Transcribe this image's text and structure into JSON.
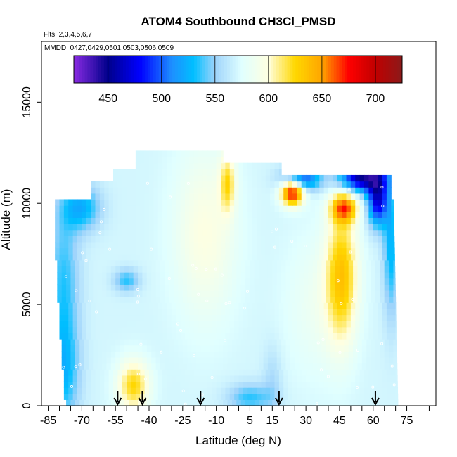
{
  "chart_data": {
    "type": "heatmap",
    "title": "ATOM4 Southbound CH3Cl_PMSD",
    "subtitle": "Flts: 2,3,4,5,6,7",
    "annotation": "MMDD: 0427,0429,0501,0503,0506,0509",
    "xlabel": "Latitude (deg N)",
    "ylabel": "Altitude (m)",
    "xlim": [
      -88,
      88
    ],
    "ylim": [
      0,
      18000
    ],
    "x_ticks": [
      -85,
      -70,
      -55,
      -40,
      -25,
      -10,
      5,
      15,
      30,
      45,
      60,
      75
    ],
    "y_ticks": [
      0,
      5000,
      10000,
      15000
    ],
    "colorbar": {
      "range": [
        418,
        725
      ],
      "ticks": [
        450,
        500,
        550,
        600,
        650,
        700
      ],
      "stops": [
        {
          "v": 418,
          "c": "#8a2be2"
        },
        {
          "v": 450,
          "c": "#00008b"
        },
        {
          "v": 480,
          "c": "#0000ff"
        },
        {
          "v": 510,
          "c": "#1e90ff"
        },
        {
          "v": 530,
          "c": "#00bfff"
        },
        {
          "v": 550,
          "c": "#9ed3fb"
        },
        {
          "v": 575,
          "c": "#e0ffff"
        },
        {
          "v": 600,
          "c": "#ffffe0"
        },
        {
          "v": 625,
          "c": "#ffd700"
        },
        {
          "v": 650,
          "c": "#ffa500"
        },
        {
          "v": 675,
          "c": "#ff0000"
        },
        {
          "v": 700,
          "c": "#c00000"
        },
        {
          "v": 725,
          "c": "#8b1a1a"
        }
      ]
    },
    "arrows_lat": [
      -54,
      -43,
      -17,
      18,
      61
    ],
    "background_value": 570,
    "field_features": [
      {
        "lat": -70,
        "alt": 9800,
        "value": 525,
        "sx": 6,
        "sy": 800
      },
      {
        "lat": -78,
        "alt": 6000,
        "value": 535,
        "sx": 5,
        "sy": 3000
      },
      {
        "lat": -78,
        "alt": 1500,
        "value": 535,
        "sx": 5,
        "sy": 1800
      },
      {
        "lat": -50,
        "alt": 6200,
        "value": 535,
        "sx": 4,
        "sy": 400
      },
      {
        "lat": -47,
        "alt": 1000,
        "value": 625,
        "sx": 5,
        "sy": 900
      },
      {
        "lat": -15,
        "alt": 8500,
        "value": 598,
        "sx": 10,
        "sy": 3000
      },
      {
        "lat": -5,
        "alt": 11000,
        "value": 615,
        "sx": 2.5,
        "sy": 1000
      },
      {
        "lat": 5,
        "alt": 400,
        "value": 535,
        "sx": 7,
        "sy": 500
      },
      {
        "lat": 15,
        "alt": 1300,
        "value": 555,
        "sx": 3,
        "sy": 1200
      },
      {
        "lat": 24,
        "alt": 10600,
        "value": 690,
        "sx": 3.5,
        "sy": 450
      },
      {
        "lat": 28,
        "alt": 11200,
        "value": 490,
        "sx": 6,
        "sy": 400
      },
      {
        "lat": 55,
        "alt": 11300,
        "value": 450,
        "sx": 7,
        "sy": 500
      },
      {
        "lat": 62,
        "alt": 10200,
        "value": 470,
        "sx": 3,
        "sy": 900
      },
      {
        "lat": 68,
        "alt": 8000,
        "value": 525,
        "sx": 2.5,
        "sy": 2500
      },
      {
        "lat": 47,
        "alt": 9800,
        "value": 650,
        "sx": 4,
        "sy": 500
      },
      {
        "lat": 46,
        "alt": 6500,
        "value": 630,
        "sx": 5,
        "sy": 2400
      },
      {
        "lat": 35,
        "alt": 5000,
        "value": 585,
        "sx": 10,
        "sy": 2500
      }
    ]
  }
}
